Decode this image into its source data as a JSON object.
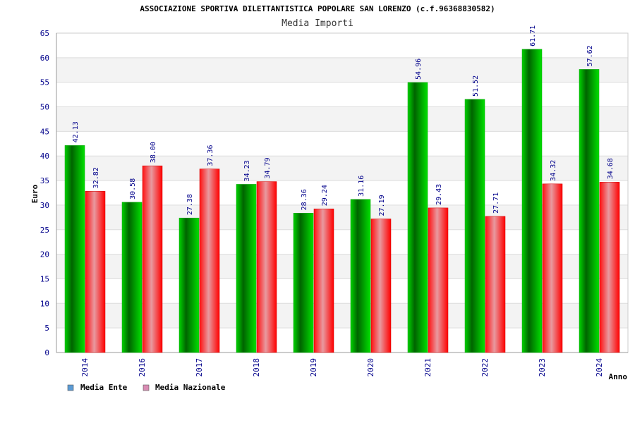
{
  "chart_data": {
    "type": "bar",
    "title": "ASSOCIAZIONE SPORTIVA DILETTANTISTICA POPOLARE SAN LORENZO (c.f.96368830582)",
    "subtitle": "Media Importi",
    "xlabel": "Anno",
    "ylabel": "Euro",
    "ylim": [
      0,
      65
    ],
    "yticks": [
      0,
      5,
      10,
      15,
      20,
      25,
      30,
      35,
      40,
      45,
      50,
      55,
      60,
      65
    ],
    "grid": "horizontal",
    "legend_position": "bottom-left",
    "categories": [
      "2014",
      "2016",
      "2017",
      "2018",
      "2019",
      "2020",
      "2021",
      "2022",
      "2023",
      "2024"
    ],
    "series": [
      {
        "name": "Media Ente",
        "color": "#00c800",
        "legend_color": "#5b9bd5",
        "values": [
          42.13,
          30.58,
          27.38,
          34.23,
          28.36,
          31.16,
          54.96,
          51.52,
          61.71,
          57.62
        ],
        "labels": [
          "42.13",
          "30.58",
          "27.38",
          "34.23",
          "28.36",
          "31.16",
          "54.96",
          "51.52",
          "61.71",
          "57.62"
        ]
      },
      {
        "name": "Media Nazionale",
        "color": "#ff0000",
        "legend_color": "#d98cb3",
        "values": [
          32.82,
          38.0,
          37.36,
          34.79,
          29.24,
          27.19,
          29.43,
          27.71,
          34.32,
          34.68
        ],
        "labels": [
          "32.82",
          "38.00",
          "37.36",
          "34.79",
          "29.24",
          "27.19",
          "29.43",
          "27.71",
          "34.32",
          "34.68"
        ]
      }
    ]
  }
}
